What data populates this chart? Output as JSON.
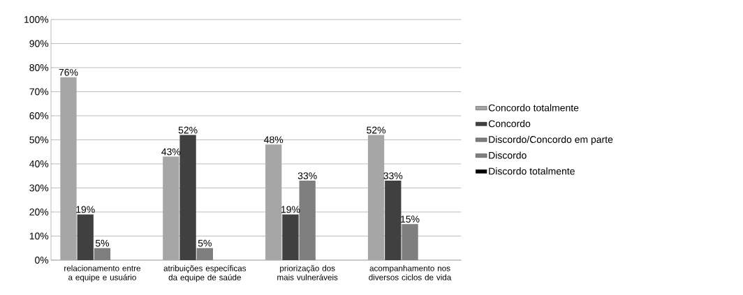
{
  "chart_data": {
    "type": "bar",
    "categories": [
      "relacionamento entre a equipe e usuário",
      "atribuições específicas da equipe de saúde",
      "priorização dos mais vulneráveis",
      "acompanhamento nos diversos ciclos de vida"
    ],
    "series": [
      {
        "name": "Concordo totalmente",
        "color": "#a6a6a6",
        "values": [
          76,
          43,
          48,
          52
        ],
        "value_labels": [
          "76%",
          "43%",
          "48%",
          "52%"
        ]
      },
      {
        "name": "Concordo",
        "color": "#404040",
        "values": [
          19,
          52,
          19,
          33
        ],
        "value_labels": [
          "19%",
          "52%",
          "19%",
          "33%"
        ]
      },
      {
        "name": "Discordo/Concordo em parte",
        "color": "#7f7f7f",
        "values": [
          5,
          5,
          33,
          15
        ],
        "value_labels": [
          "5%",
          "5%",
          "33%",
          "15%"
        ]
      },
      {
        "name": "Discordo",
        "color": "#808080",
        "values": [
          0,
          0,
          0,
          0
        ],
        "value_labels": [
          null,
          null,
          null,
          null
        ]
      },
      {
        "name": "Discordo totalmente",
        "color": "#000000",
        "values": [
          0,
          0,
          0,
          0
        ],
        "value_labels": [
          null,
          null,
          null,
          null
        ]
      }
    ],
    "ylim": [
      0,
      100
    ],
    "yticks": [
      {
        "value": 0,
        "label": "0%"
      },
      {
        "value": 10,
        "label": "10%"
      },
      {
        "value": 20,
        "label": "20%"
      },
      {
        "value": 30,
        "label": "30%"
      },
      {
        "value": 40,
        "label": "40%"
      },
      {
        "value": 50,
        "label": "50%"
      },
      {
        "value": 60,
        "label": "60%"
      },
      {
        "value": 70,
        "label": "70%"
      },
      {
        "value": 80,
        "label": "80%"
      },
      {
        "value": 90,
        "label": "90%"
      },
      {
        "value": 100,
        "label": "100%"
      }
    ],
    "grid": "y",
    "legend": "right"
  }
}
